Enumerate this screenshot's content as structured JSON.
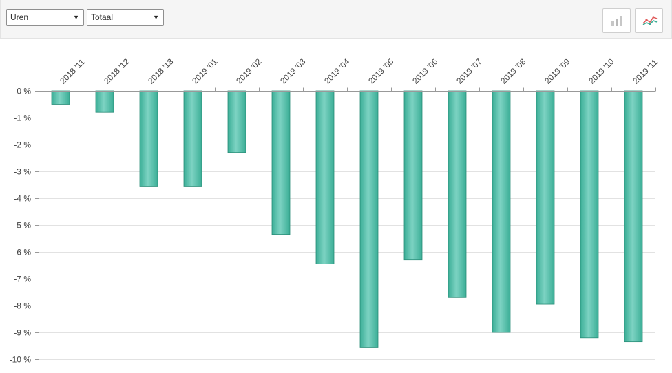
{
  "toolbar": {
    "measure_select": {
      "value": "Uren"
    },
    "scope_select": {
      "value": "Totaal"
    },
    "bar_chart_button_icon": "bar-chart-icon",
    "line_chart_button_icon": "line-chart-icon"
  },
  "colors": {
    "bar_light": "#7dd3c3",
    "bar_dark": "#3bae96",
    "bar_stroke": "#2a8d78",
    "grid": "#e2e2e2",
    "axis": "#999999"
  },
  "chart_data": {
    "type": "bar",
    "categories": [
      "2018 '11",
      "2018 '12",
      "2018 '13",
      "2019 '01",
      "2019 '02",
      "2019 '03",
      "2019 '04",
      "2019 '05",
      "2019 '06",
      "2019 '07",
      "2019 '08",
      "2019 '09",
      "2019 '10",
      "2019 '11"
    ],
    "values": [
      -0.5,
      -0.8,
      -3.55,
      -3.55,
      -2.3,
      -5.35,
      -6.45,
      -9.55,
      -6.3,
      -7.7,
      -9.0,
      -7.95,
      -9.2,
      -9.35
    ],
    "ylim": [
      -10,
      0
    ],
    "yticks": [
      "0 %",
      "-1 %",
      "-2 %",
      "-3 %",
      "-4 %",
      "-5 %",
      "-6 %",
      "-7 %",
      "-8 %",
      "-9 %",
      "-10 %"
    ],
    "x_axis_position": "top",
    "grid": true,
    "legend": false
  }
}
